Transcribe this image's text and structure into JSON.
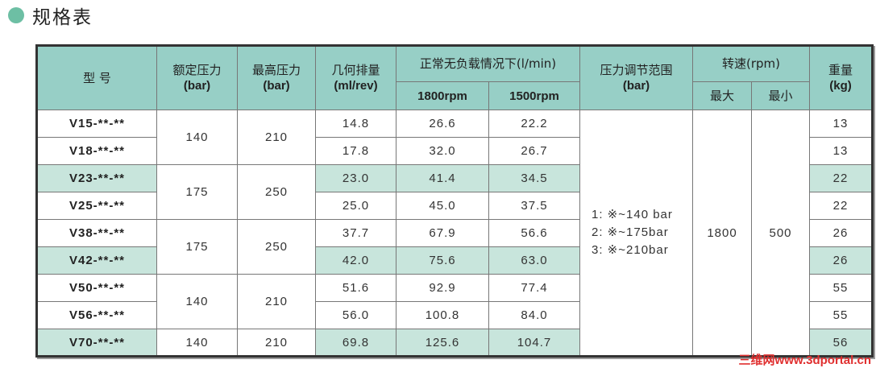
{
  "title": "规格表",
  "accent_color": "#6dbfa4",
  "header_color": "#97cfc6",
  "highlight_color": "#c8e5dc",
  "headers": {
    "model": "型 号",
    "rated_pressure": "额定压力",
    "rated_pressure_unit": "(bar)",
    "max_pressure": "最高压力",
    "max_pressure_unit": "(bar)",
    "displacement": "几何排量",
    "displacement_unit": "(ml/rev)",
    "flow": "正常无负载情况下(l/min)",
    "flow_1800": "1800rpm",
    "flow_1500": "1500rpm",
    "range": "压力调节范围",
    "range_unit": "(bar)",
    "speed": "转速(rpm)",
    "speed_max": "最大",
    "speed_min": "最小",
    "weight": "重量",
    "weight_unit": "(kg)"
  },
  "pressure_groups": [
    {
      "rated": "140",
      "max": "210",
      "rows": 2
    },
    {
      "rated": "175",
      "max": "250",
      "rows": 2
    },
    {
      "rated": "175",
      "max": "250",
      "rows": 2
    },
    {
      "rated": "140",
      "max": "210",
      "rows": 2
    },
    {
      "rated": "140",
      "max": "210",
      "rows": 1
    }
  ],
  "range_lines": [
    "1: ※~140 bar",
    "2: ※~175bar",
    "3: ※~210bar"
  ],
  "speed_max": "1800",
  "speed_min": "500",
  "rows": [
    {
      "model": "V15-**-**",
      "disp": "14.8",
      "f1800": "26.6",
      "f1500": "22.2",
      "weight": "13",
      "highlight": false
    },
    {
      "model": "V18-**-**",
      "disp": "17.8",
      "f1800": "32.0",
      "f1500": "26.7",
      "weight": "13",
      "highlight": false
    },
    {
      "model": "V23-**-**",
      "disp": "23.0",
      "f1800": "41.4",
      "f1500": "34.5",
      "weight": "22",
      "highlight": true
    },
    {
      "model": "V25-**-**",
      "disp": "25.0",
      "f1800": "45.0",
      "f1500": "37.5",
      "weight": "22",
      "highlight": false
    },
    {
      "model": "V38-**-**",
      "disp": "37.7",
      "f1800": "67.9",
      "f1500": "56.6",
      "weight": "26",
      "highlight": false
    },
    {
      "model": "V42-**-**",
      "disp": "42.0",
      "f1800": "75.6",
      "f1500": "63.0",
      "weight": "26",
      "highlight": true
    },
    {
      "model": "V50-**-**",
      "disp": "51.6",
      "f1800": "92.9",
      "f1500": "77.4",
      "weight": "55",
      "highlight": false
    },
    {
      "model": "V56-**-**",
      "disp": "56.0",
      "f1800": "100.8",
      "f1500": "84.0",
      "weight": "55",
      "highlight": false
    },
    {
      "model": "V70-**-**",
      "disp": "69.8",
      "f1800": "125.6",
      "f1500": "104.7",
      "weight": "56",
      "highlight": true
    }
  ],
  "watermark": "三维网www.3dportal.cn"
}
